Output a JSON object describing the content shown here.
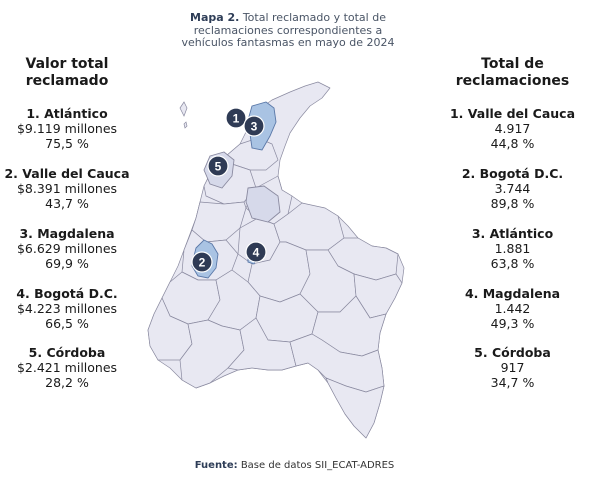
{
  "title": {
    "prefix": "Mapa 2.",
    "text": "Total reclamado y total de reclamaciones correspondientes a vehículos fantasmas en mayo de 2024"
  },
  "left_panel": {
    "heading_line1": "Valor total",
    "heading_line2": "reclamado",
    "items": [
      {
        "name": "1. Atlántico",
        "value": "$9.119 millones",
        "pct": "75,5 %"
      },
      {
        "name": "2. Valle del Cauca",
        "value": "$8.391 millones",
        "pct": "43,7 %"
      },
      {
        "name": "3. Magdalena",
        "value": "$6.629 millones",
        "pct": "69,9 %"
      },
      {
        "name": "4. Bogotá D.C.",
        "value": "$4.223 millones",
        "pct": "66,5 %"
      },
      {
        "name": "5. Córdoba",
        "value": "$2.421 millones",
        "pct": "28,2 %"
      }
    ]
  },
  "right_panel": {
    "heading_line1": "Total de",
    "heading_line2": "reclamaciones",
    "items": [
      {
        "name": "1. Valle del Cauca",
        "value": "4.917",
        "pct": "44,8 %"
      },
      {
        "name": "2. Bogotá D.C.",
        "value": "3.744",
        "pct": "89,8 %"
      },
      {
        "name": "3. Atlántico",
        "value": "1.881",
        "pct": "63,8 %"
      },
      {
        "name": "4. Magdalena",
        "value": "1.442",
        "pct": "49,3 %"
      },
      {
        "name": "5. Córdoba",
        "value": "917",
        "pct": "34,7 %"
      }
    ]
  },
  "map": {
    "markers": [
      "1",
      "3",
      "5",
      "2",
      "4"
    ],
    "colors": {
      "base": "#e8e8f2",
      "highlight": "#a9c3e3",
      "medium": "#d6d9ea",
      "border": "#8a8aa0",
      "marker": "#2f3b55"
    }
  },
  "source": {
    "label": "Fuente:",
    "text": "Base de datos SII_ECAT-ADRES"
  }
}
